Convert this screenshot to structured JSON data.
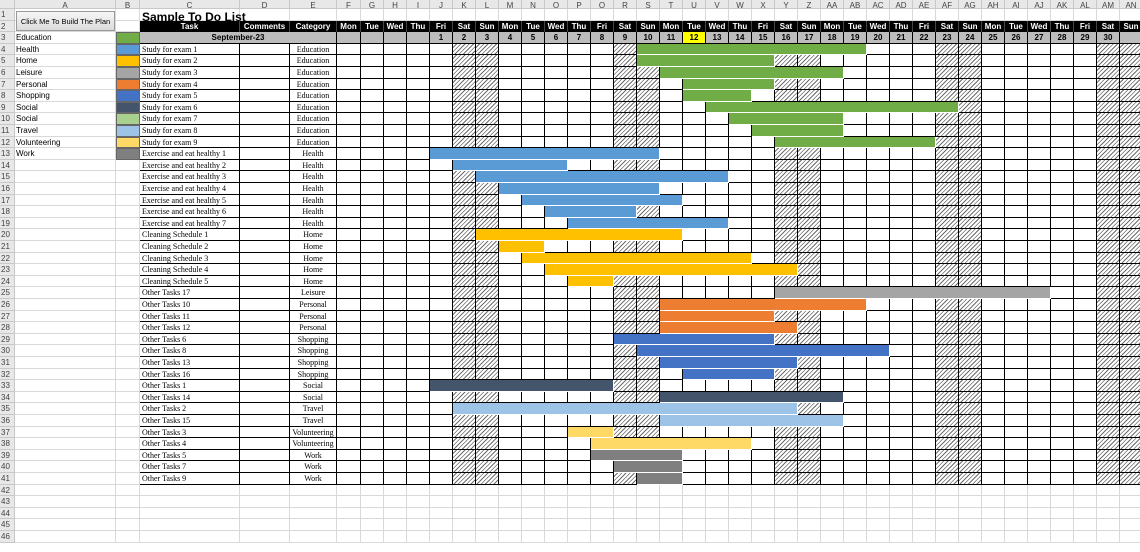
{
  "sheet": {
    "title": "Sample To Do List",
    "build_button": "Click Me To Build The Plan",
    "month": "September-23",
    "headers": {
      "task": "Task",
      "comments": "Comments",
      "category": "Category"
    },
    "col_letters": [
      "A",
      "B",
      "C",
      "D",
      "E",
      "F",
      "G",
      "H",
      "I",
      "J",
      "K",
      "L",
      "M",
      "N",
      "O",
      "P",
      "Q",
      "R",
      "S",
      "T",
      "U",
      "V",
      "W",
      "X",
      "Y",
      "Z",
      "AA",
      "AB",
      "AC",
      "AD",
      "AE",
      "AF",
      "AG",
      "AH",
      "AI",
      "AJ",
      "AK",
      "AL",
      "AM",
      "AN"
    ],
    "row_numbers": [
      "1",
      "2",
      "3",
      "4",
      "5",
      "6",
      "7",
      "8",
      "9",
      "10",
      "11",
      "12",
      "13",
      "14",
      "15",
      "16",
      "17",
      "18",
      "19",
      "20",
      "21",
      "22",
      "23",
      "24",
      "25",
      "26",
      "27",
      "28",
      "29",
      "30",
      "31",
      "32",
      "33",
      "34",
      "35",
      "36",
      "37",
      "38",
      "39",
      "40",
      "41",
      "42",
      "43",
      "44",
      "45",
      "46"
    ],
    "day_names": [
      "Mon",
      "Tue",
      "Wed",
      "Thu",
      "Fri",
      "Sat",
      "Sun",
      "Mon",
      "Tue",
      "Wed",
      "Thu",
      "Fri",
      "Sat",
      "Sun",
      "Mon",
      "Tue",
      "Wed",
      "Thu",
      "Fri",
      "Sat",
      "Sun",
      "Mon",
      "Tue",
      "Wed",
      "Thu",
      "Fri",
      "Sat",
      "Sun",
      "Mon",
      "Tue",
      "Wed",
      "Thu",
      "Fri",
      "Sat",
      "Sun"
    ],
    "day_numbers": [
      "",
      "",
      "",
      "",
      "1",
      "2",
      "3",
      "4",
      "5",
      "6",
      "7",
      "8",
      "9",
      "10",
      "11",
      "12",
      "13",
      "14",
      "15",
      "16",
      "17",
      "18",
      "19",
      "20",
      "21",
      "22",
      "23",
      "24",
      "25",
      "26",
      "27",
      "28",
      "29",
      "30",
      ""
    ],
    "today": "12",
    "categories": [
      {
        "name": "Education",
        "color": "#70ad47"
      },
      {
        "name": "Health",
        "color": "#5b9bd5"
      },
      {
        "name": "Home",
        "color": "#ffc000"
      },
      {
        "name": "Leisure",
        "color": "#a5a5a5"
      },
      {
        "name": "Personal",
        "color": "#ed7d31"
      },
      {
        "name": "Shopping",
        "color": "#4472c4"
      },
      {
        "name": "Social",
        "color": "#44546a"
      },
      {
        "name": "Social",
        "color": "#a9d08e"
      },
      {
        "name": "Travel",
        "color": "#9dc3e6"
      },
      {
        "name": "Volunteering",
        "color": "#ffd966"
      },
      {
        "name": "Work",
        "color": "#7f7f7f"
      }
    ],
    "tasks": [
      {
        "task": "Study for exam 1",
        "category": "Education",
        "start": 10,
        "end": 19
      },
      {
        "task": "Study for exam 2",
        "category": "Education",
        "start": 10,
        "end": 15
      },
      {
        "task": "Study for exam 3",
        "category": "Education",
        "start": 11,
        "end": 18
      },
      {
        "task": "Study for exam 4",
        "category": "Education",
        "start": 12,
        "end": 15
      },
      {
        "task": "Study for exam 5",
        "category": "Education",
        "start": 12,
        "end": 14
      },
      {
        "task": "Study for exam 6",
        "category": "Education",
        "start": 13,
        "end": 23
      },
      {
        "task": "Study for exam 7",
        "category": "Education",
        "start": 14,
        "end": 18
      },
      {
        "task": "Study for exam 8",
        "category": "Education",
        "start": 15,
        "end": 18
      },
      {
        "task": "Study for exam 9",
        "category": "Education",
        "start": 16,
        "end": 22
      },
      {
        "task": "Exercise and eat healthy 1",
        "category": "Health",
        "start": 1,
        "end": 10
      },
      {
        "task": "Exercise and eat healthy 2",
        "category": "Health",
        "start": 2,
        "end": 6
      },
      {
        "task": "Exercise and eat healthy 3",
        "category": "Health",
        "start": 3,
        "end": 13
      },
      {
        "task": "Exercise and eat healthy 4",
        "category": "Health",
        "start": 4,
        "end": 10
      },
      {
        "task": "Exercise and eat healthy 5",
        "category": "Health",
        "start": 5,
        "end": 11
      },
      {
        "task": "Exercise and eat healthy 6",
        "category": "Health",
        "start": 6,
        "end": 9
      },
      {
        "task": "Exercise and eat healthy 7",
        "category": "Health",
        "start": 7,
        "end": 13
      },
      {
        "task": "Cleaning Schedule 1",
        "category": "Home",
        "start": 3,
        "end": 11
      },
      {
        "task": "Cleaning Schedule 2",
        "category": "Home",
        "start": 4,
        "end": 5
      },
      {
        "task": "Cleaning Schedule 3",
        "category": "Home",
        "start": 5,
        "end": 14
      },
      {
        "task": "Cleaning Schedule 4",
        "category": "Home",
        "start": 6,
        "end": 16
      },
      {
        "task": "Cleaning Schedule 5",
        "category": "Home",
        "start": 7,
        "end": 8
      },
      {
        "task": "Other Tasks 17",
        "category": "Leisure",
        "start": 16,
        "end": 27
      },
      {
        "task": "Other Tasks 10",
        "category": "Personal",
        "start": 11,
        "end": 19
      },
      {
        "task": "Other Tasks 11",
        "category": "Personal",
        "start": 11,
        "end": 15
      },
      {
        "task": "Other Tasks 12",
        "category": "Personal",
        "start": 11,
        "end": 16
      },
      {
        "task": "Other Tasks 6",
        "category": "Shopping",
        "start": 9,
        "end": 15
      },
      {
        "task": "Other Tasks 8",
        "category": "Shopping",
        "start": 10,
        "end": 20
      },
      {
        "task": "Other Tasks 13",
        "category": "Shopping",
        "start": 11,
        "end": 16
      },
      {
        "task": "Other Tasks 16",
        "category": "Shopping",
        "start": 12,
        "end": 15
      },
      {
        "task": "Other Tasks 1",
        "category": "Social",
        "start": 1,
        "end": 8
      },
      {
        "task": "Other Tasks 14",
        "category": "Social",
        "start": 11,
        "end": 18
      },
      {
        "task": "Other Tasks 2",
        "category": "Travel",
        "start": 2,
        "end": 16
      },
      {
        "task": "Other Tasks 15",
        "category": "Travel",
        "start": 11,
        "end": 18
      },
      {
        "task": "Other Tasks 3",
        "category": "Volunteering",
        "start": 7,
        "end": 8
      },
      {
        "task": "Other Tasks 4",
        "category": "Volunteering",
        "start": 8,
        "end": 14
      },
      {
        "task": "Other Tasks 5",
        "category": "Work",
        "start": 8,
        "end": 11
      },
      {
        "task": "Other Tasks 7",
        "category": "Work",
        "start": 9,
        "end": 11
      },
      {
        "task": "Other Tasks 9",
        "category": "Work",
        "start": 10,
        "end": 11
      }
    ]
  }
}
